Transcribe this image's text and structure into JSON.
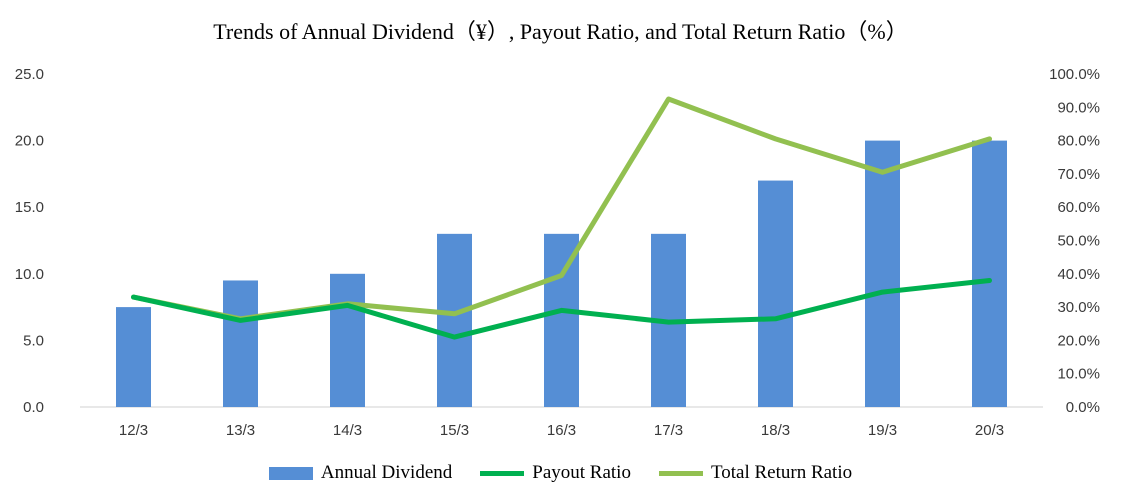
{
  "chart_data": {
    "type": "bar",
    "title": "Trends of Annual Dividend（¥）, Payout Ratio, and Total Return Ratio（%）",
    "categories": [
      "12/3",
      "13/3",
      "14/3",
      "15/3",
      "16/3",
      "17/3",
      "18/3",
      "19/3",
      "20/3"
    ],
    "y_left": {
      "min": 0,
      "max": 25,
      "step": 5,
      "tick_labels": [
        "0.0",
        "5.0",
        "10.0",
        "15.0",
        "20.0",
        "25.0"
      ]
    },
    "y_right": {
      "min": 0,
      "max": 100,
      "step": 10,
      "tick_labels": [
        "0.0%",
        "10.0%",
        "20.0%",
        "30.0%",
        "40.0%",
        "50.0%",
        "60.0%",
        "70.0%",
        "80.0%",
        "90.0%",
        "100.0%"
      ]
    },
    "grid": false,
    "legend_position": "bottom",
    "series": [
      {
        "name": "Annual Dividend",
        "kind": "bar",
        "axis": "left",
        "color": "#558ED5",
        "values": [
          7.5,
          9.5,
          10.0,
          13.0,
          13.0,
          13.0,
          17.0,
          20.0,
          20.0
        ]
      },
      {
        "name": "Payout Ratio",
        "kind": "line",
        "axis": "right",
        "color": "#00B050",
        "values": [
          33.0,
          26.0,
          30.5,
          21.0,
          29.0,
          25.5,
          26.5,
          34.5,
          38.0
        ]
      },
      {
        "name": "Total Return Ratio",
        "kind": "line",
        "axis": "right",
        "color": "#92C050",
        "values": [
          33.0,
          26.5,
          31.0,
          28.0,
          39.5,
          92.5,
          80.5,
          70.5,
          80.5
        ]
      }
    ]
  }
}
